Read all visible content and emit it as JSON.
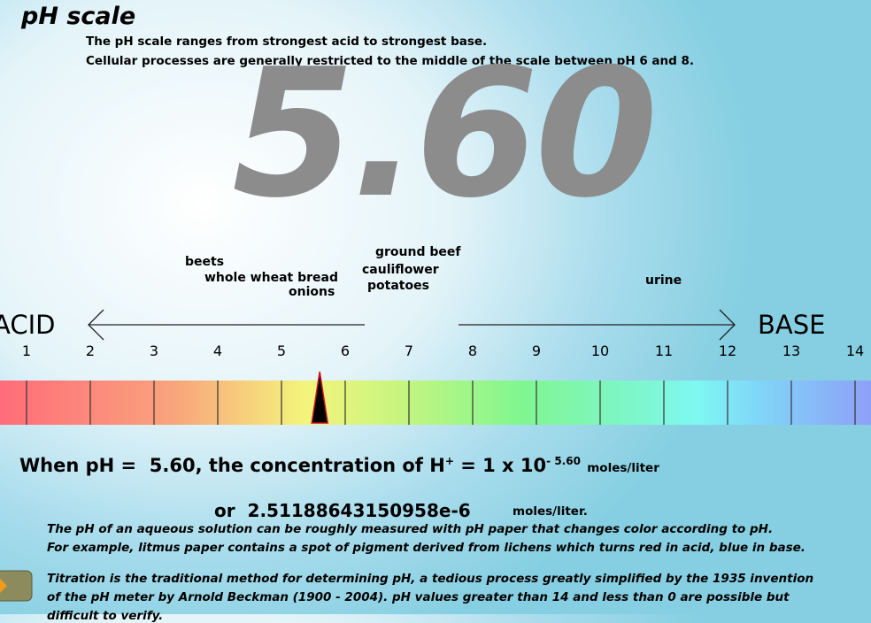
{
  "header": {
    "title": "pH scale",
    "lines": [
      "The pH scale ranges from strongest acid to strongest base.",
      "Cellular processes are generally restricted to the middle of the scale between pH 6 and 8."
    ]
  },
  "ph": {
    "value": 5.6,
    "label": "5.60"
  },
  "examples": [
    "beets",
    "whole wheat bread",
    "onions",
    "ground beef",
    "cauliflower",
    "potatoes",
    "urine"
  ],
  "scale": {
    "acid": "ACID",
    "base": "BASE",
    "ticks": [
      1,
      2,
      3,
      4,
      5,
      6,
      7,
      8,
      9,
      10,
      11,
      12,
      13,
      14
    ]
  },
  "formula": {
    "prefix": "When pH =",
    "middle": ", the concentration of H",
    "ion_charge": "+",
    "equals": "= 1 x 10",
    "exponent_sign": "-",
    "unit": "moles/liter",
    "or": "or",
    "concentration": "2.51188643150958e-6",
    "unit2": "moles/liter."
  },
  "paragraphs": [
    "The pH of an aqueous solution can be roughly measured with pH paper that changes color according to pH.",
    "For example, litmus paper contains a spot of pigment derived from lichens which turns red in acid, blue in base.",
    "Titration is the traditional method for determining pH, a tedious process greatly simplified by the 1935 invention",
    "of the pH meter by Arnold Beckman (1900 - 2004). pH values greater than 14 and less than 0 are possible but",
    "difficult to verify."
  ]
}
